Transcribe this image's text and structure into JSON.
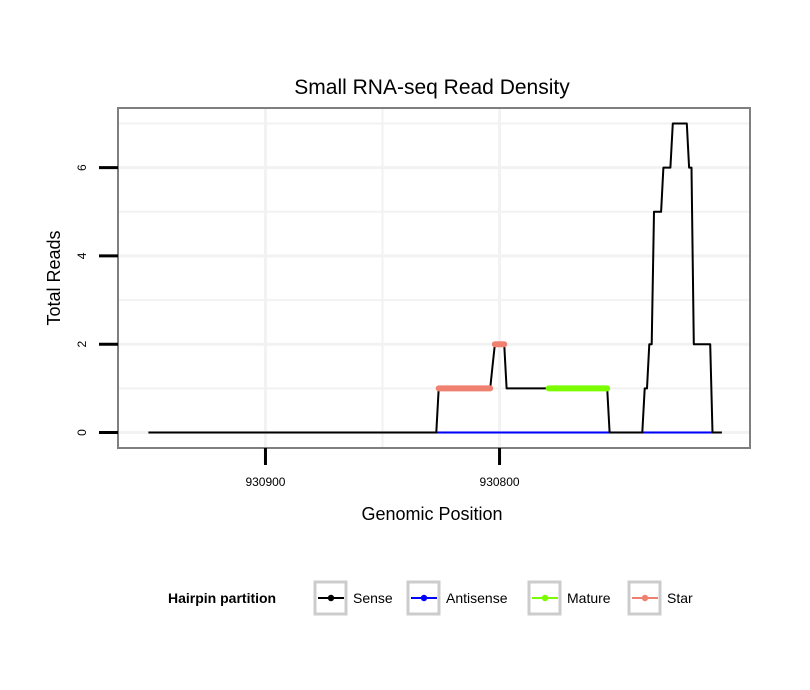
{
  "chart_data": {
    "type": "line",
    "title": "Small RNA-seq Read Density",
    "xlabel": "Genomic Position",
    "ylabel": "Total Reads",
    "x_reversed": true,
    "xlim": [
      930963,
      930693
    ],
    "ylim": [
      -0.35,
      7.35
    ],
    "x_ticks": [
      930900,
      930800
    ],
    "x_tick_labels": [
      "930900",
      "930800"
    ],
    "y_ticks": [
      0,
      2,
      4,
      6
    ],
    "y_tick_labels": [
      "0",
      "2",
      "4",
      "6"
    ],
    "grid": true,
    "legend": {
      "title": "Hairpin partition",
      "position": "bottom",
      "entries": [
        {
          "name": "Sense",
          "color": "#000000"
        },
        {
          "name": "Antisense",
          "color": "#0000ff"
        },
        {
          "name": "Mature",
          "color": "#7cfc00"
        },
        {
          "name": "Star",
          "color": "#f08070"
        }
      ]
    },
    "series": [
      {
        "name": "Sense",
        "color": "#000000",
        "width": 2,
        "points": [
          [
            930950,
            0
          ],
          [
            930827,
            0
          ],
          [
            930826,
            1
          ],
          [
            930804,
            1
          ],
          [
            930803,
            1.5
          ],
          [
            930802,
            2
          ],
          [
            930798,
            2
          ],
          [
            930797,
            1
          ],
          [
            930779,
            1
          ],
          [
            930778,
            1
          ],
          [
            930754,
            1
          ],
          [
            930753,
            0
          ],
          [
            930739,
            0
          ],
          [
            930738,
            1
          ],
          [
            930737,
            1
          ],
          [
            930736,
            2
          ],
          [
            930735,
            2
          ],
          [
            930734,
            5
          ],
          [
            930731,
            5
          ],
          [
            930730,
            6
          ],
          [
            930727,
            6
          ],
          [
            930726,
            7
          ],
          [
            930720,
            7
          ],
          [
            930719,
            6
          ],
          [
            930718,
            6
          ],
          [
            930717,
            2
          ],
          [
            930710,
            2
          ],
          [
            930709,
            0
          ],
          [
            930705,
            0
          ]
        ]
      },
      {
        "name": "Antisense",
        "color": "#0000ff",
        "width": 2,
        "points": [
          [
            930827,
            0
          ],
          [
            930709,
            0
          ]
        ]
      },
      {
        "name": "Mature",
        "color": "#7cfc00",
        "width": 6,
        "points": [
          [
            930779,
            1
          ],
          [
            930754,
            1
          ]
        ]
      },
      {
        "name": "Star",
        "color": "#f08070",
        "width": 6,
        "points": [
          [
            930826,
            1
          ],
          [
            930804,
            1
          ],
          [
            930802,
            2
          ],
          [
            930798,
            2
          ]
        ],
        "segments": [
          [
            [
              930826,
              1
            ],
            [
              930804,
              1
            ]
          ],
          [
            [
              930802,
              2
            ],
            [
              930798,
              2
            ]
          ]
        ]
      }
    ]
  }
}
